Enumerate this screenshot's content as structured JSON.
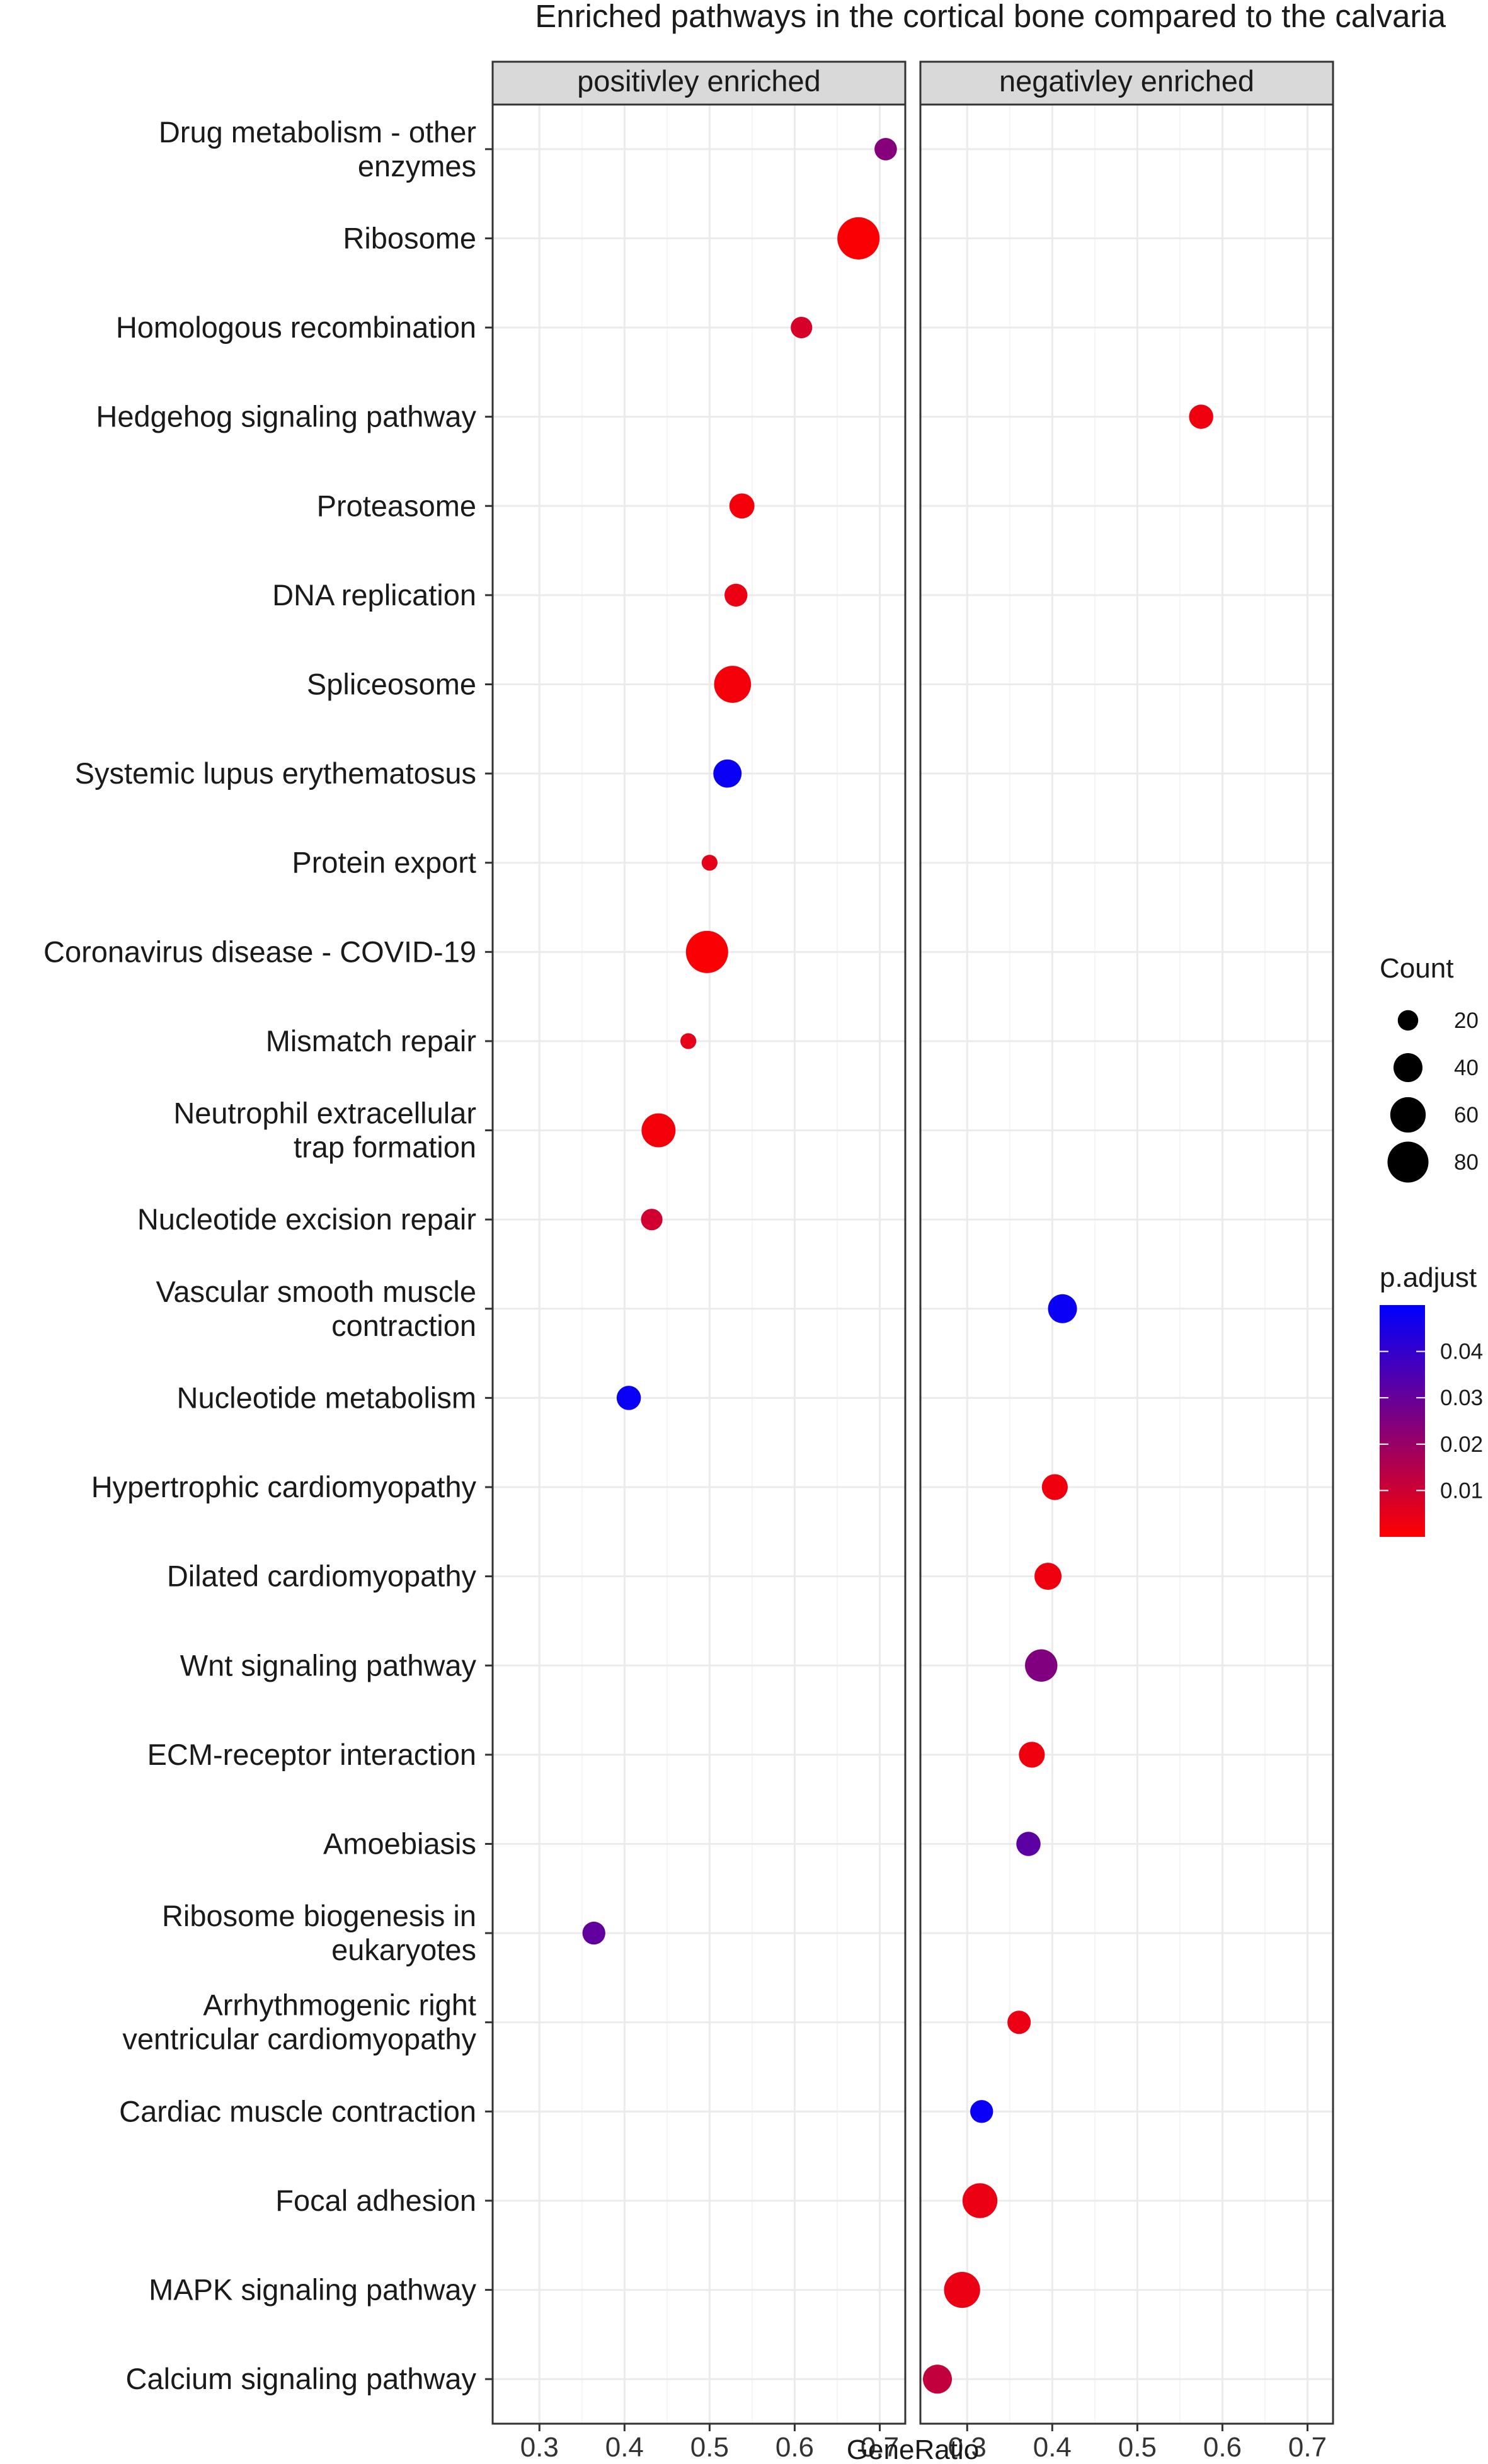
{
  "chart_data": {
    "type": "scatter",
    "title": "Enriched pathways in the cortical bone compared to the calvaria",
    "xlabel": "GeneRatio",
    "ylabel": "",
    "xlim": [
      0.245,
      0.73
    ],
    "x_ticks": [
      "0.3",
      "0.4",
      "0.5",
      "0.6",
      "0.7"
    ],
    "grid": true,
    "legend_position": "right",
    "facets": [
      {
        "key": "pos",
        "label": "positivley enriched"
      },
      {
        "key": "neg",
        "label": "negativley enriched"
      }
    ],
    "categories": [
      {
        "label": [
          "Drug metabolism - other",
          "enzymes"
        ]
      },
      {
        "label": [
          "Ribosome"
        ]
      },
      {
        "label": [
          "Homologous recombination"
        ]
      },
      {
        "label": [
          "Hedgehog signaling pathway"
        ]
      },
      {
        "label": [
          "Proteasome"
        ]
      },
      {
        "label": [
          "DNA replication"
        ]
      },
      {
        "label": [
          "Spliceosome"
        ]
      },
      {
        "label": [
          "Systemic lupus erythematosus"
        ]
      },
      {
        "label": [
          "Protein export"
        ]
      },
      {
        "label": [
          "Coronavirus disease - COVID-19"
        ]
      },
      {
        "label": [
          "Mismatch repair"
        ]
      },
      {
        "label": [
          "Neutrophil extracellular",
          "trap formation"
        ]
      },
      {
        "label": [
          "Nucleotide excision repair"
        ]
      },
      {
        "label": [
          "Vascular smooth muscle",
          "contraction"
        ]
      },
      {
        "label": [
          "Nucleotide metabolism"
        ]
      },
      {
        "label": [
          "Hypertrophic cardiomyopathy"
        ]
      },
      {
        "label": [
          "Dilated cardiomyopathy"
        ]
      },
      {
        "label": [
          "Wnt signaling pathway"
        ]
      },
      {
        "label": [
          "ECM-receptor interaction"
        ]
      },
      {
        "label": [
          "Amoebiasis"
        ]
      },
      {
        "label": [
          "Ribosome biogenesis in",
          "eukaryotes"
        ]
      },
      {
        "label": [
          "Arrhythmogenic right",
          "ventricular cardiomyopathy"
        ]
      },
      {
        "label": [
          "Cardiac muscle contraction"
        ]
      },
      {
        "label": [
          "Focal adhesion"
        ]
      },
      {
        "label": [
          "MAPK signaling pathway"
        ]
      },
      {
        "label": [
          "Calcium signaling pathway"
        ]
      }
    ],
    "points": [
      {
        "facet": "pos",
        "cat": 0,
        "gene_ratio": 0.707,
        "count": 24,
        "p_adjust": 0.024
      },
      {
        "facet": "pos",
        "cat": 1,
        "gene_ratio": 0.675,
        "count": 85,
        "p_adjust": 0.001
      },
      {
        "facet": "pos",
        "cat": 2,
        "gene_ratio": 0.608,
        "count": 22,
        "p_adjust": 0.008
      },
      {
        "facet": "pos",
        "cat": 4,
        "gene_ratio": 0.538,
        "count": 30,
        "p_adjust": 0.002
      },
      {
        "facet": "pos",
        "cat": 5,
        "gene_ratio": 0.531,
        "count": 25,
        "p_adjust": 0.004
      },
      {
        "facet": "pos",
        "cat": 6,
        "gene_ratio": 0.527,
        "count": 65,
        "p_adjust": 0.002
      },
      {
        "facet": "pos",
        "cat": 7,
        "gene_ratio": 0.521,
        "count": 38,
        "p_adjust": 0.048
      },
      {
        "facet": "pos",
        "cat": 8,
        "gene_ratio": 0.5,
        "count": 12,
        "p_adjust": 0.005
      },
      {
        "facet": "pos",
        "cat": 9,
        "gene_ratio": 0.497,
        "count": 85,
        "p_adjust": 0.001
      },
      {
        "facet": "pos",
        "cat": 10,
        "gene_ratio": 0.475,
        "count": 12,
        "p_adjust": 0.005
      },
      {
        "facet": "pos",
        "cat": 11,
        "gene_ratio": 0.44,
        "count": 55,
        "p_adjust": 0.002
      },
      {
        "facet": "pos",
        "cat": 12,
        "gene_ratio": 0.432,
        "count": 22,
        "p_adjust": 0.009
      },
      {
        "facet": "pos",
        "cat": 14,
        "gene_ratio": 0.405,
        "count": 28,
        "p_adjust": 0.048
      },
      {
        "facet": "pos",
        "cat": 20,
        "gene_ratio": 0.364,
        "count": 25,
        "p_adjust": 0.031
      },
      {
        "facet": "neg",
        "cat": 3,
        "gene_ratio": 0.575,
        "count": 28,
        "p_adjust": 0.003
      },
      {
        "facet": "neg",
        "cat": 13,
        "gene_ratio": 0.412,
        "count": 40,
        "p_adjust": 0.048
      },
      {
        "facet": "neg",
        "cat": 15,
        "gene_ratio": 0.403,
        "count": 32,
        "p_adjust": 0.003
      },
      {
        "facet": "neg",
        "cat": 16,
        "gene_ratio": 0.395,
        "count": 35,
        "p_adjust": 0.003
      },
      {
        "facet": "neg",
        "cat": 17,
        "gene_ratio": 0.387,
        "count": 50,
        "p_adjust": 0.025
      },
      {
        "facet": "neg",
        "cat": 18,
        "gene_ratio": 0.376,
        "count": 32,
        "p_adjust": 0.003
      },
      {
        "facet": "neg",
        "cat": 19,
        "gene_ratio": 0.372,
        "count": 28,
        "p_adjust": 0.032
      },
      {
        "facet": "neg",
        "cat": 21,
        "gene_ratio": 0.361,
        "count": 26,
        "p_adjust": 0.004
      },
      {
        "facet": "neg",
        "cat": 22,
        "gene_ratio": 0.317,
        "count": 25,
        "p_adjust": 0.048
      },
      {
        "facet": "neg",
        "cat": 23,
        "gene_ratio": 0.315,
        "count": 58,
        "p_adjust": 0.004
      },
      {
        "facet": "neg",
        "cat": 24,
        "gene_ratio": 0.294,
        "count": 62,
        "p_adjust": 0.004
      },
      {
        "facet": "neg",
        "cat": 25,
        "gene_ratio": 0.265,
        "count": 40,
        "p_adjust": 0.012
      }
    ],
    "legend_count": {
      "title": "Count",
      "values": [
        20,
        40,
        60,
        80
      ],
      "labels": [
        "20",
        "40",
        "60",
        "80"
      ]
    },
    "legend_padjust": {
      "title": "p.adjust",
      "range": [
        0.0,
        0.05
      ],
      "ticks": [
        0.04,
        0.03,
        0.02,
        0.01
      ],
      "labels": [
        "0.04",
        "0.03",
        "0.02",
        "0.01"
      ],
      "low_color": "#ff0000",
      "high_color": "#0000ff"
    },
    "colors": {
      "panel_border": "#333333",
      "strip_fill": "#d9d9d9",
      "grid_major": "#ebebeb",
      "grid_minor": "#f5f5f5"
    }
  }
}
